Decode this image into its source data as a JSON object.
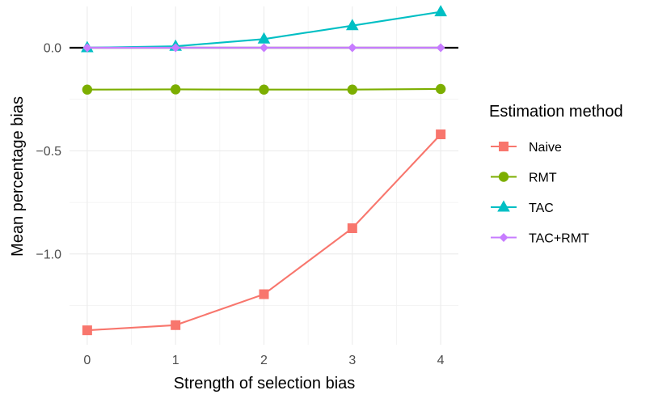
{
  "chart_data": {
    "type": "line",
    "title": "",
    "xlabel": "Strength of selection bias",
    "ylabel": "Mean percentage bias",
    "x": [
      0,
      1,
      2,
      3,
      4
    ],
    "x_ticks": [
      "0",
      "1",
      "2",
      "3",
      "4"
    ],
    "y_ticks": [
      {
        "value": 0.0,
        "label": "0.0"
      },
      {
        "value": -0.5,
        "label": "−0.5"
      },
      {
        "value": -1.0,
        "label": "−1.0"
      }
    ],
    "xlim": [
      -0.2,
      4.2
    ],
    "ylim": [
      -1.44,
      0.2
    ],
    "grid": true,
    "reference_line": {
      "y": 0
    },
    "legend": {
      "title": "Estimation method",
      "position": "right"
    },
    "series": [
      {
        "name": "Naive",
        "color": "#F8766D",
        "marker": "square",
        "values": [
          -1.37,
          -1.345,
          -1.195,
          -0.875,
          -0.42
        ]
      },
      {
        "name": "RMT",
        "color": "#7CAE00",
        "marker": "circle",
        "values": [
          -0.203,
          -0.202,
          -0.203,
          -0.203,
          -0.2
        ]
      },
      {
        "name": "TAC",
        "color": "#00BFC4",
        "marker": "triangle",
        "values": [
          0.0,
          0.007,
          0.042,
          0.107,
          0.174
        ]
      },
      {
        "name": "TAC+RMT",
        "color": "#C77CFF",
        "marker": "diamond",
        "values": [
          0.0,
          0.0,
          0.0,
          0.0,
          0.0
        ]
      }
    ]
  }
}
